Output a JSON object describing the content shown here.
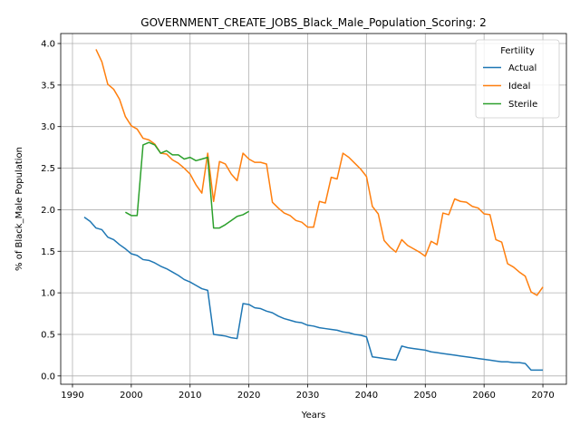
{
  "chart_data": {
    "type": "line",
    "title": "GOVERNMENT_CREATE_JOBS_Black_Male_Population_Scoring: 2",
    "xlabel": "Years",
    "ylabel": "% of Black_Male Population",
    "xlim": [
      1988,
      2074
    ],
    "ylim": [
      -0.1,
      4.12
    ],
    "xticks": [
      1990,
      2000,
      2010,
      2020,
      2030,
      2040,
      2050,
      2060,
      2070
    ],
    "yticks": [
      0.0,
      0.5,
      1.0,
      1.5,
      2.0,
      2.5,
      3.0,
      3.5,
      4.0
    ],
    "grid": true,
    "legend": {
      "title": "Fertility",
      "position": "top-right"
    },
    "series": [
      {
        "name": "Actual",
        "color": "#1f77b4",
        "x": [
          1992,
          1993,
          1994,
          1995,
          1996,
          1997,
          1998,
          1999,
          2000,
          2001,
          2002,
          2003,
          2004,
          2005,
          2006,
          2007,
          2008,
          2009,
          2010,
          2011,
          2012,
          2013,
          2014,
          2015,
          2016,
          2017,
          2018,
          2019,
          2020,
          2021,
          2022,
          2023,
          2024,
          2025,
          2026,
          2027,
          2028,
          2029,
          2030,
          2031,
          2032,
          2033,
          2034,
          2035,
          2036,
          2037,
          2038,
          2039,
          2040,
          2041,
          2042,
          2043,
          2044,
          2045,
          2046,
          2047,
          2048,
          2049,
          2050,
          2051,
          2052,
          2053,
          2054,
          2055,
          2056,
          2057,
          2058,
          2059,
          2060,
          2061,
          2062,
          2063,
          2064,
          2065,
          2066,
          2067,
          2068,
          2069,
          2070
        ],
        "y": [
          1.91,
          1.86,
          1.78,
          1.76,
          1.67,
          1.64,
          1.58,
          1.53,
          1.47,
          1.45,
          1.4,
          1.39,
          1.36,
          1.32,
          1.29,
          1.25,
          1.21,
          1.16,
          1.13,
          1.09,
          1.05,
          1.03,
          0.5,
          0.49,
          0.48,
          0.46,
          0.45,
          0.87,
          0.86,
          0.82,
          0.81,
          0.78,
          0.76,
          0.72,
          0.69,
          0.67,
          0.65,
          0.64,
          0.61,
          0.6,
          0.58,
          0.57,
          0.56,
          0.55,
          0.53,
          0.52,
          0.5,
          0.49,
          0.47,
          0.23,
          0.22,
          0.21,
          0.2,
          0.19,
          0.36,
          0.34,
          0.33,
          0.32,
          0.31,
          0.29,
          0.28,
          0.27,
          0.26,
          0.25,
          0.24,
          0.23,
          0.22,
          0.21,
          0.2,
          0.19,
          0.18,
          0.17,
          0.17,
          0.16,
          0.16,
          0.15,
          0.07,
          0.07,
          0.07
        ]
      },
      {
        "name": "Ideal",
        "color": "#ff7f0e",
        "x": [
          1994,
          1995,
          1996,
          1997,
          1998,
          1999,
          2000,
          2001,
          2002,
          2003,
          2004,
          2005,
          2006,
          2007,
          2008,
          2009,
          2010,
          2011,
          2012,
          2013,
          2014,
          2015,
          2016,
          2017,
          2018,
          2019,
          2020,
          2021,
          2022,
          2023,
          2024,
          2025,
          2026,
          2027,
          2028,
          2029,
          2030,
          2031,
          2032,
          2033,
          2034,
          2035,
          2036,
          2037,
          2038,
          2039,
          2040,
          2041,
          2042,
          2043,
          2044,
          2045,
          2046,
          2047,
          2048,
          2049,
          2050,
          2051,
          2052,
          2053,
          2054,
          2055,
          2056,
          2057,
          2058,
          2059,
          2060,
          2061,
          2062,
          2063,
          2064,
          2065,
          2066,
          2067,
          2068,
          2069,
          2070
        ],
        "y": [
          3.93,
          3.78,
          3.51,
          3.45,
          3.33,
          3.12,
          3.01,
          2.97,
          2.86,
          2.84,
          2.79,
          2.68,
          2.67,
          2.6,
          2.56,
          2.5,
          2.43,
          2.3,
          2.2,
          2.68,
          2.1,
          2.58,
          2.55,
          2.43,
          2.35,
          2.68,
          2.61,
          2.57,
          2.57,
          2.55,
          2.09,
          2.02,
          1.96,
          1.93,
          1.87,
          1.85,
          1.79,
          1.79,
          2.1,
          2.08,
          2.39,
          2.37,
          2.68,
          2.63,
          2.56,
          2.49,
          2.4,
          2.04,
          1.95,
          1.63,
          1.55,
          1.49,
          1.64,
          1.57,
          1.53,
          1.49,
          1.44,
          1.62,
          1.58,
          1.96,
          1.94,
          2.13,
          2.1,
          2.09,
          2.04,
          2.02,
          1.95,
          1.94,
          1.64,
          1.61,
          1.35,
          1.31,
          1.25,
          1.2,
          1.01,
          0.97,
          1.07
        ]
      },
      {
        "name": "Sterile",
        "color": "#2ca02c",
        "x": [
          1999,
          2000,
          2001,
          2002,
          2003,
          2004,
          2005,
          2006,
          2007,
          2008,
          2009,
          2010,
          2011,
          2012,
          2013,
          2014,
          2015,
          2016,
          2017,
          2018,
          2019,
          2020
        ],
        "y": [
          1.97,
          1.93,
          1.93,
          2.78,
          2.81,
          2.78,
          2.68,
          2.71,
          2.66,
          2.66,
          2.61,
          2.63,
          2.59,
          2.61,
          2.63,
          1.78,
          1.78,
          1.82,
          1.87,
          1.92,
          1.94,
          1.98
        ]
      }
    ]
  }
}
